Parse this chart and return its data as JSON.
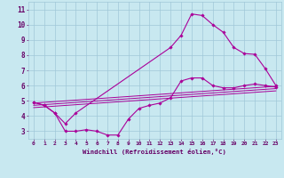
{
  "xlabel": "Windchill (Refroidissement éolien,°C)",
  "background_color": "#c8e8f0",
  "grid_color": "#a0c8d8",
  "line_color": "#aa0099",
  "xlim": [
    -0.5,
    23.5
  ],
  "ylim": [
    2.5,
    11.5
  ],
  "xticks": [
    0,
    1,
    2,
    3,
    4,
    5,
    6,
    7,
    8,
    9,
    10,
    11,
    12,
    13,
    14,
    15,
    16,
    17,
    18,
    19,
    20,
    21,
    22,
    23
  ],
  "yticks": [
    3,
    4,
    5,
    6,
    7,
    8,
    9,
    10,
    11
  ],
  "upper_x": [
    0,
    1,
    2,
    3,
    4,
    13,
    14,
    15,
    16,
    17,
    18,
    19,
    20,
    21,
    22,
    23
  ],
  "upper_y": [
    4.9,
    4.7,
    4.2,
    3.5,
    4.2,
    8.5,
    9.3,
    10.7,
    10.6,
    10.0,
    9.5,
    8.5,
    8.1,
    8.05,
    7.1,
    6.0
  ],
  "lower_x": [
    0,
    1,
    2,
    3,
    4,
    5,
    6,
    7,
    8,
    9,
    10,
    11,
    12,
    13,
    14,
    15,
    16,
    17,
    18,
    19,
    20,
    21,
    22,
    23
  ],
  "lower_y": [
    4.9,
    4.7,
    4.2,
    3.0,
    3.0,
    3.1,
    3.0,
    2.75,
    2.75,
    3.8,
    4.5,
    4.7,
    4.85,
    5.2,
    6.3,
    6.5,
    6.5,
    6.0,
    5.85,
    5.85,
    6.0,
    6.1,
    6.0,
    5.9
  ],
  "line1_x": [
    0,
    23
  ],
  "line1_y": [
    4.85,
    5.95
  ],
  "line2_x": [
    0,
    23
  ],
  "line2_y": [
    4.7,
    5.8
  ],
  "line3_x": [
    0,
    23
  ],
  "line3_y": [
    4.55,
    5.65
  ],
  "font_color": "#660066"
}
